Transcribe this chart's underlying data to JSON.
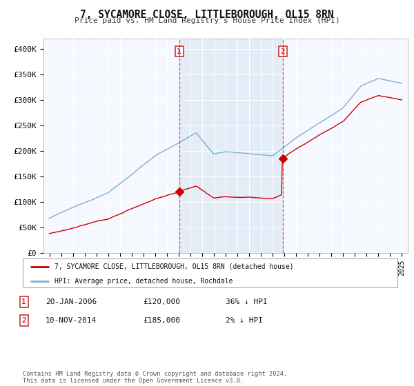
{
  "title": "7, SYCAMORE CLOSE, LITTLEBOROUGH, OL15 8RN",
  "subtitle": "Price paid vs. HM Land Registry's House Price Index (HPI)",
  "legend_line1": "7, SYCAMORE CLOSE, LITTLEBOROUGH, OL15 8RN (detached house)",
  "legend_line2": "HPI: Average price, detached house, Rochdale",
  "footnote": "Contains HM Land Registry data © Crown copyright and database right 2024.\nThis data is licensed under the Open Government Licence v3.0.",
  "table_rows": [
    {
      "num": "1",
      "date": "20-JAN-2006",
      "price": "£120,000",
      "rel": "36% ↓ HPI"
    },
    {
      "num": "2",
      "date": "10-NOV-2014",
      "price": "£185,000",
      "rel": "2% ↓ HPI"
    }
  ],
  "sale1_x": 2006.05,
  "sale1_y": 120000,
  "sale2_x": 2014.86,
  "sale2_y": 185000,
  "vline1_x": 2006.05,
  "vline2_x": 2014.86,
  "red_color": "#cc0000",
  "blue_color": "#7ab0d4",
  "vline_color": "#cc3333",
  "background_color": "#ffffff",
  "plot_bg_color": "#f5f8ff",
  "shade_color": "#dce8f5",
  "ylim_min": 0,
  "ylim_max": 420000,
  "xlim_min": 1994.5,
  "xlim_max": 2025.5,
  "yticks": [
    0,
    50000,
    100000,
    150000,
    200000,
    250000,
    300000,
    350000,
    400000
  ],
  "ytick_labels": [
    "£0",
    "£50K",
    "£100K",
    "£150K",
    "£200K",
    "£250K",
    "£300K",
    "£350K",
    "£400K"
  ],
  "xticks": [
    1995,
    1996,
    1997,
    1998,
    1999,
    2000,
    2001,
    2002,
    2003,
    2004,
    2005,
    2006,
    2007,
    2008,
    2009,
    2010,
    2011,
    2012,
    2013,
    2014,
    2015,
    2016,
    2017,
    2018,
    2019,
    2020,
    2021,
    2022,
    2023,
    2024,
    2025
  ]
}
